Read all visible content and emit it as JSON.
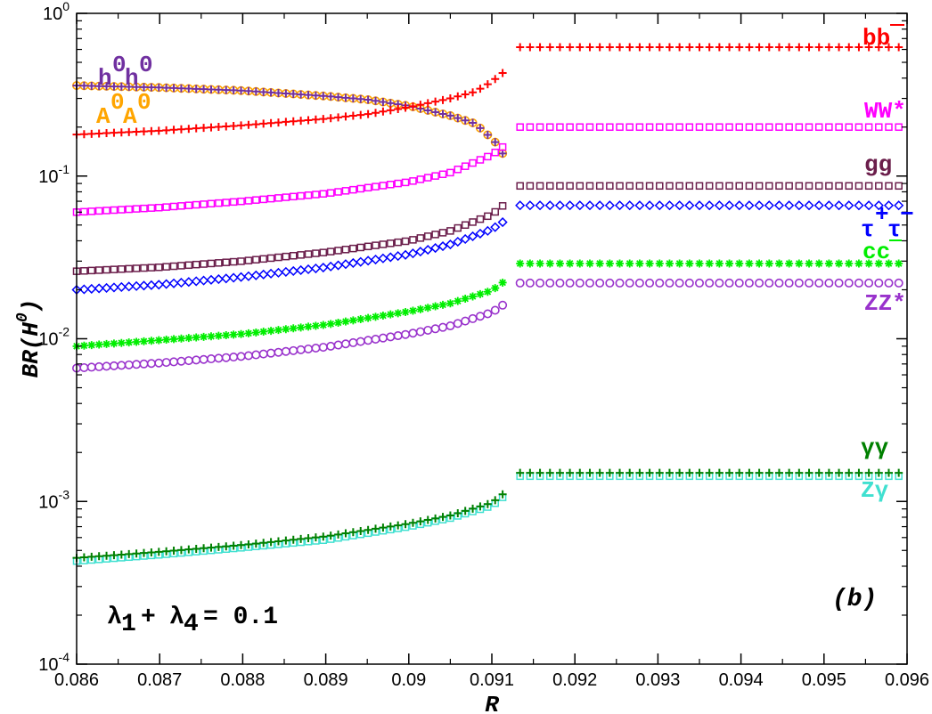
{
  "chart_data": {
    "type": "scatter",
    "title": "",
    "xlabel": "R",
    "ylabel": "BR(H0)",
    "xlim": [
      0.086,
      0.096
    ],
    "ylim": [
      0.0001,
      1
    ],
    "yscale": "log",
    "grid": false,
    "x_ticks": [
      "0.086",
      "0.087",
      "0.088",
      "0.089",
      "0.09",
      "0.091",
      "0.092",
      "0.093",
      "0.094",
      "0.095",
      "0.096"
    ],
    "y_ticks": [
      "10-4",
      "10-3",
      "10-2",
      "10-1",
      "100"
    ],
    "annotations": [
      "λ1 + λ4 = 0.1",
      "(b)"
    ],
    "series": [
      {
        "name": "bb̄",
        "color": "#ff0000",
        "marker": "plus",
        "x": [
          0.086,
          0.087,
          0.088,
          0.089,
          0.0895,
          0.09,
          0.0905,
          0.0908,
          0.091,
          0.0912,
          0.0913,
          0.0914,
          0.096
        ],
        "y": [
          0.18,
          0.19,
          0.205,
          0.225,
          0.24,
          0.265,
          0.3,
          0.33,
          0.38,
          0.46,
          0.62,
          0.62,
          0.62
        ]
      },
      {
        "name": "h0h0",
        "color": "#7030a0",
        "marker": "plus",
        "x": [
          0.086,
          0.087,
          0.088,
          0.089,
          0.0895,
          0.09,
          0.0905,
          0.0908,
          0.091,
          0.0911,
          0.09115,
          0.0912
        ],
        "y": [
          0.36,
          0.35,
          0.335,
          0.31,
          0.295,
          0.27,
          0.235,
          0.21,
          0.17,
          0.15,
          0.13,
          0.105
        ]
      },
      {
        "name": "A0A0",
        "color": "#ffa500",
        "marker": "circle",
        "x": [
          0.086,
          0.087,
          0.088,
          0.089,
          0.0895,
          0.09,
          0.0905,
          0.0908,
          0.091,
          0.0911,
          0.09115,
          0.0912
        ],
        "y": [
          0.36,
          0.35,
          0.335,
          0.31,
          0.295,
          0.27,
          0.235,
          0.21,
          0.17,
          0.15,
          0.13,
          0.105
        ]
      },
      {
        "name": "WW*",
        "color": "#ff00ff",
        "marker": "square",
        "x": [
          0.086,
          0.087,
          0.088,
          0.089,
          0.09,
          0.0905,
          0.091,
          0.0912,
          0.0913,
          0.0914,
          0.096
        ],
        "y": [
          0.06,
          0.064,
          0.07,
          0.078,
          0.092,
          0.105,
          0.135,
          0.16,
          0.2,
          0.2,
          0.2
        ]
      },
      {
        "name": "gg",
        "color": "#6b1e4b",
        "marker": "square",
        "x": [
          0.086,
          0.087,
          0.088,
          0.089,
          0.09,
          0.0905,
          0.091,
          0.0912,
          0.0913,
          0.0914,
          0.096
        ],
        "y": [
          0.026,
          0.0275,
          0.03,
          0.034,
          0.04,
          0.046,
          0.058,
          0.07,
          0.087,
          0.087,
          0.087
        ]
      },
      {
        "name": "τ+τ−",
        "color": "#0000ff",
        "marker": "diamond",
        "x": [
          0.086,
          0.087,
          0.088,
          0.089,
          0.09,
          0.0905,
          0.091,
          0.0912,
          0.0913,
          0.0914,
          0.096
        ],
        "y": [
          0.02,
          0.0215,
          0.024,
          0.0275,
          0.033,
          0.038,
          0.047,
          0.055,
          0.066,
          0.066,
          0.066
        ]
      },
      {
        "name": "cc̄",
        "color": "#00ee00",
        "marker": "star",
        "x": [
          0.086,
          0.087,
          0.088,
          0.089,
          0.09,
          0.0905,
          0.091,
          0.0912,
          0.0913,
          0.0914,
          0.096
        ],
        "y": [
          0.009,
          0.0098,
          0.0107,
          0.0122,
          0.0147,
          0.0165,
          0.0198,
          0.0235,
          0.029,
          0.029,
          0.029
        ]
      },
      {
        "name": "ZZ*",
        "color": "#9932cc",
        "marker": "circle",
        "x": [
          0.086,
          0.087,
          0.088,
          0.089,
          0.09,
          0.0905,
          0.091,
          0.0912,
          0.0913,
          0.0914,
          0.096
        ],
        "y": [
          0.0066,
          0.0071,
          0.0078,
          0.0089,
          0.0107,
          0.012,
          0.0145,
          0.017,
          0.022,
          0.022,
          0.022
        ]
      },
      {
        "name": "γγ",
        "color": "#008000",
        "marker": "plus",
        "x": [
          0.086,
          0.087,
          0.088,
          0.089,
          0.09,
          0.0905,
          0.091,
          0.0912,
          0.0913,
          0.0914,
          0.096
        ],
        "y": [
          0.00045,
          0.00049,
          0.00054,
          0.00061,
          0.00073,
          0.00082,
          0.00098,
          0.00118,
          0.0015,
          0.0015,
          0.0015
        ]
      },
      {
        "name": "Zγ",
        "color": "#40e0d0",
        "marker": "square",
        "x": [
          0.086,
          0.087,
          0.088,
          0.089,
          0.09,
          0.0905,
          0.091,
          0.0912,
          0.0913,
          0.0914,
          0.096
        ],
        "y": [
          0.00043,
          0.00047,
          0.00052,
          0.00058,
          0.0007,
          0.00079,
          0.00094,
          0.00113,
          0.00143,
          0.00143,
          0.00143
        ]
      }
    ]
  },
  "colors": {
    "axis": "#000000",
    "background": "#ffffff"
  }
}
